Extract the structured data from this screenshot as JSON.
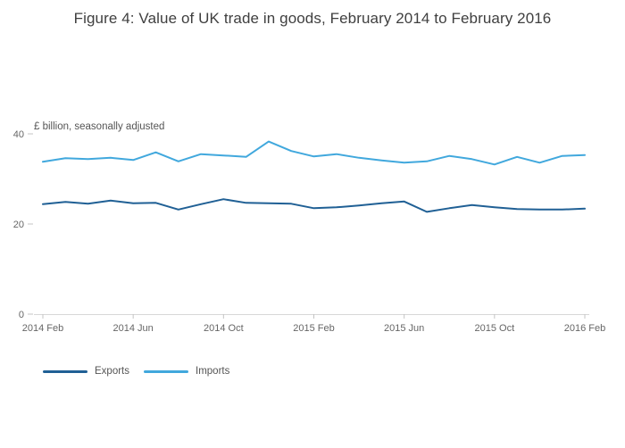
{
  "title": "Figure 4: Value of UK trade in goods, February 2014 to February 2016",
  "axis_note": "£ billion, seasonally adjusted",
  "legend": {
    "items": [
      {
        "label": "Exports"
      },
      {
        "label": "Imports"
      }
    ]
  },
  "chart_data": {
    "type": "line",
    "title": "Figure 4: Value of UK trade in goods, February 2014 to February 2016",
    "ylabel": "£ billion, seasonally adjusted",
    "xlabel": "",
    "ylim": [
      0,
      40
    ],
    "yticks": [
      0,
      20,
      40
    ],
    "grid": false,
    "legend_position": "bottom-left",
    "x": [
      "2014 Feb",
      "2014 Mar",
      "2014 Apr",
      "2014 May",
      "2014 Jun",
      "2014 Jul",
      "2014 Aug",
      "2014 Sep",
      "2014 Oct",
      "2014 Nov",
      "2014 Dec",
      "2015 Jan",
      "2015 Feb",
      "2015 Mar",
      "2015 Apr",
      "2015 May",
      "2015 Jun",
      "2015 Jul",
      "2015 Aug",
      "2015 Sep",
      "2015 Oct",
      "2015 Nov",
      "2015 Dec",
      "2016 Jan",
      "2016 Feb"
    ],
    "x_ticks": [
      {
        "label": "2014 Feb",
        "index": 0
      },
      {
        "label": "2014 Jun",
        "index": 4
      },
      {
        "label": "2014 Oct",
        "index": 8
      },
      {
        "label": "2015 Feb",
        "index": 12
      },
      {
        "label": "2015 Jun",
        "index": 16
      },
      {
        "label": "2015 Oct",
        "index": 20
      },
      {
        "label": "2016 Feb",
        "index": 24
      }
    ],
    "series": [
      {
        "name": "Exports",
        "color": "#206095",
        "values": [
          24.4,
          24.9,
          24.5,
          25.2,
          24.6,
          24.7,
          23.2,
          24.4,
          25.5,
          24.7,
          24.6,
          24.5,
          23.5,
          23.7,
          24.1,
          24.6,
          25.0,
          22.7,
          23.5,
          24.2,
          23.7,
          23.3,
          23.2,
          23.2,
          23.4
        ]
      },
      {
        "name": "Imports",
        "color": "#41a8dd",
        "values": [
          33.8,
          34.6,
          34.4,
          34.7,
          34.2,
          35.9,
          33.9,
          35.5,
          35.2,
          34.9,
          38.3,
          36.2,
          35.0,
          35.5,
          34.7,
          34.1,
          33.6,
          33.9,
          35.1,
          34.4,
          33.2,
          34.9,
          33.6,
          35.1,
          35.3
        ]
      }
    ]
  }
}
